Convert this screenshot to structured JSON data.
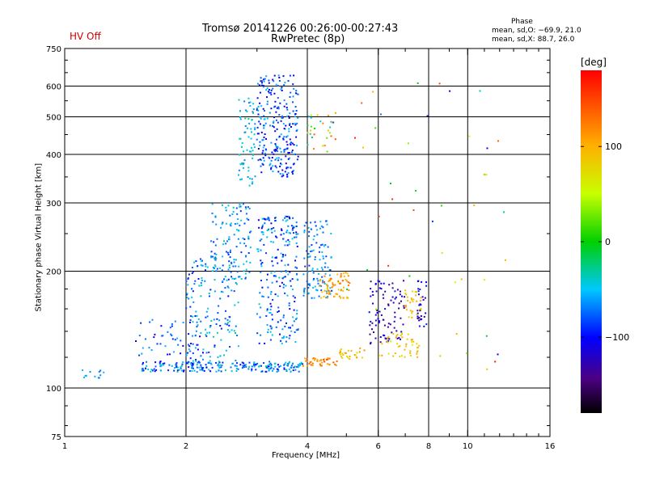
{
  "header": {
    "title_line1": "Tromsø 20141226 00:26:00-00:27:43",
    "title_line2": "RwPretec (8p)",
    "hv_status": "HV Off",
    "hv_color": "#d40000"
  },
  "phase_stats": {
    "title": "Phase",
    "o_line": "mean, sd,O: −69.9, 21.0",
    "x_line": "mean, sd,X: 88.7, 26.0"
  },
  "colorbar": {
    "unit": "[deg]",
    "ticks": [
      100,
      0,
      -100
    ],
    "tick_labels": [
      "100",
      "0",
      "−100"
    ],
    "range": [
      -180,
      180
    ],
    "colormap": "rainbow"
  },
  "chart_data": {
    "type": "scatter",
    "xlabel": "Frequency [MHz]",
    "ylabel": "Stationary phase Virtual Height [km]",
    "xscale": "log",
    "yscale": "log",
    "xlim": [
      1,
      16
    ],
    "ylim": [
      75,
      750
    ],
    "xticks": [
      1,
      2,
      4,
      6,
      8,
      10,
      16
    ],
    "xtick_labels": [
      "1",
      "2",
      "4",
      "6",
      "8",
      "10",
      "16"
    ],
    "yticks": [
      75,
      100,
      200,
      300,
      400,
      500,
      600,
      750
    ],
    "ytick_labels": [
      "75",
      "100",
      "200",
      "300",
      "400",
      "500",
      "600",
      "750"
    ],
    "grid": true,
    "color_encodes": "Phase [deg]",
    "clusters": [
      {
        "x": [
          1.08,
          1.25
        ],
        "y": [
          105,
          112
        ],
        "n": 12,
        "phase": [
          -80,
          -40
        ]
      },
      {
        "x": [
          1.55,
          3.9
        ],
        "y": [
          110,
          117
        ],
        "n": 220,
        "phase": [
          -110,
          -30
        ]
      },
      {
        "x": [
          3.9,
          4.8
        ],
        "y": [
          114,
          120
        ],
        "n": 40,
        "phase": [
          100,
          150
        ]
      },
      {
        "x": [
          4.8,
          5.6
        ],
        "y": [
          118,
          127
        ],
        "n": 25,
        "phase": [
          60,
          120
        ]
      },
      {
        "x": [
          1.5,
          2.2
        ],
        "y": [
          115,
          150
        ],
        "n": 60,
        "phase": [
          -110,
          -50
        ]
      },
      {
        "x": [
          2.0,
          2.7
        ],
        "y": [
          115,
          220
        ],
        "n": 160,
        "phase": [
          -100,
          -30
        ]
      },
      {
        "x": [
          2.3,
          2.9
        ],
        "y": [
          190,
          300
        ],
        "n": 120,
        "phase": [
          -90,
          -30
        ]
      },
      {
        "x": [
          2.7,
          3.0
        ],
        "y": [
          330,
          560
        ],
        "n": 70,
        "phase": [
          -70,
          -30
        ]
      },
      {
        "x": [
          3.0,
          3.8
        ],
        "y": [
          130,
          280
        ],
        "n": 230,
        "phase": [
          -110,
          -40
        ]
      },
      {
        "x": [
          3.0,
          3.8
        ],
        "y": [
          350,
          640
        ],
        "n": 260,
        "phase": [
          -120,
          -50
        ]
      },
      {
        "x": [
          3.9,
          4.6
        ],
        "y": [
          170,
          270
        ],
        "n": 110,
        "phase": [
          -90,
          -40
        ]
      },
      {
        "x": [
          4.3,
          5.1
        ],
        "y": [
          170,
          200
        ],
        "n": 70,
        "phase": [
          80,
          130
        ]
      },
      {
        "x": [
          4.0,
          4.7
        ],
        "y": [
          400,
          520
        ],
        "n": 30,
        "phase": [
          -80,
          150
        ]
      },
      {
        "x": [
          5.7,
          7.0
        ],
        "y": [
          130,
          190
        ],
        "n": 90,
        "phase": [
          -150,
          -90
        ]
      },
      {
        "x": [
          6.0,
          7.6
        ],
        "y": [
          120,
          140
        ],
        "n": 45,
        "phase": [
          60,
          110
        ]
      },
      {
        "x": [
          7.0,
          7.7
        ],
        "y": [
          150,
          180
        ],
        "n": 35,
        "phase": [
          70,
          110
        ]
      },
      {
        "x": [
          7.5,
          7.9
        ],
        "y": [
          140,
          190
        ],
        "n": 30,
        "phase": [
          -140,
          -90
        ]
      },
      {
        "x": [
          5.0,
          13.0
        ],
        "y": [
          110,
          650
        ],
        "n": 45,
        "phase": [
          -120,
          170
        ]
      }
    ]
  }
}
